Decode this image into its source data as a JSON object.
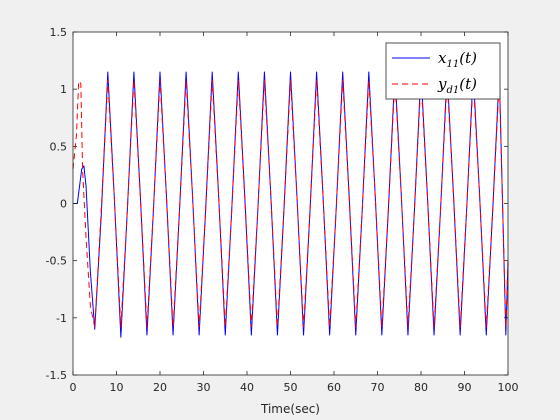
{
  "chart_data": {
    "type": "line",
    "title": "",
    "xlabel": "Time(sec)",
    "ylabel": "",
    "xlim": [
      0,
      100
    ],
    "ylim": [
      -1.5,
      1.5
    ],
    "xticks": [
      0,
      10,
      20,
      30,
      40,
      50,
      60,
      70,
      80,
      90,
      100
    ],
    "yticks": [
      -1.5,
      -1,
      -0.5,
      0,
      0.5,
      1,
      1.5
    ],
    "ytick_labels": [
      "-1.5",
      "-1",
      "-0.5",
      "0",
      "0.5",
      "1",
      "1.5"
    ],
    "grid": false,
    "legend_position": "top-right",
    "series": [
      {
        "name": "x11(t)",
        "name_main": "x",
        "name_sub": "11",
        "name_tail": "(t)",
        "color": "#0000ff",
        "style": "solid",
        "x": [
          0,
          1,
          2,
          2.5,
          3,
          4,
          5,
          6.5,
          8,
          9.5,
          11,
          12.5,
          14,
          15.5,
          17,
          18.5,
          20,
          21.5,
          23,
          24.5,
          26,
          27.5,
          29,
          30.5,
          32,
          33.5,
          35,
          36.5,
          38,
          39.5,
          41,
          42.5,
          44,
          45.5,
          47,
          48.5,
          50,
          51.5,
          53,
          54.5,
          56,
          57.5,
          59,
          60.5,
          62,
          63.5,
          65,
          66.5,
          68,
          69.5,
          71,
          72.5,
          74,
          75.5,
          77,
          78.5,
          80,
          81.5,
          83,
          84.5,
          86,
          87.5,
          89,
          90.5,
          92,
          93.5,
          95,
          96.5,
          98,
          99.5,
          100
        ],
        "y": [
          0,
          0,
          0.3,
          0.33,
          0.15,
          -0.6,
          -1.1,
          -0.1,
          1.15,
          0.05,
          -1.17,
          -0.05,
          1.15,
          0.05,
          -1.15,
          -0.05,
          1.15,
          0.05,
          -1.15,
          -0.05,
          1.15,
          0.05,
          -1.15,
          -0.05,
          1.15,
          0.05,
          -1.15,
          -0.05,
          1.15,
          0.05,
          -1.15,
          -0.05,
          1.15,
          0.05,
          -1.15,
          -0.05,
          1.15,
          0.05,
          -1.15,
          -0.05,
          1.15,
          0.05,
          -1.15,
          -0.05,
          1.15,
          0.05,
          -1.15,
          -0.05,
          1.15,
          0.05,
          -1.15,
          -0.05,
          1.15,
          0.05,
          -1.15,
          -0.05,
          1.15,
          0.05,
          -1.15,
          -0.05,
          1.15,
          0.05,
          -1.15,
          -0.05,
          1.15,
          0.05,
          -1.15,
          -0.05,
          1.15,
          -1.15,
          -0.5
        ]
      },
      {
        "name": "yd1(t)",
        "name_main": "y",
        "name_sub": "d1",
        "name_tail": "(t)",
        "color": "#ff0000",
        "style": "dashed",
        "x": [
          0,
          0.8,
          1.3,
          1.8,
          2.2,
          3,
          4,
          5,
          6.5,
          8,
          9.5,
          11,
          12.5,
          14,
          15.5,
          17,
          18.5,
          20,
          21.5,
          23,
          24.5,
          26,
          27.5,
          29,
          30.5,
          32,
          33.5,
          35,
          36.5,
          38,
          39.5,
          41,
          42.5,
          44,
          45.5,
          47,
          48.5,
          50,
          51.5,
          53,
          54.5,
          56,
          57.5,
          59,
          60.5,
          62,
          63.5,
          65,
          66.5,
          68,
          69.5,
          71,
          72.5,
          74,
          75.5,
          77,
          78.5,
          80,
          81.5,
          83,
          84.5,
          86,
          87.5,
          89,
          90.5,
          92,
          93.5,
          95,
          96.5,
          98,
          99.5,
          100
        ],
        "y": [
          0.3,
          0.6,
          1.07,
          1.05,
          0.3,
          -0.3,
          -0.9,
          -1.08,
          -0.05,
          1.08,
          0.05,
          -1.08,
          -0.05,
          1.08,
          0.05,
          -1.08,
          -0.05,
          1.08,
          0.05,
          -1.08,
          -0.05,
          1.08,
          0.05,
          -1.08,
          -0.05,
          1.08,
          0.05,
          -1.08,
          -0.05,
          1.08,
          0.05,
          -1.08,
          -0.05,
          1.08,
          0.05,
          -1.08,
          -0.05,
          1.08,
          0.05,
          -1.08,
          -0.05,
          1.08,
          0.05,
          -1.08,
          -0.05,
          1.08,
          0.05,
          -1.08,
          -0.05,
          1.08,
          0.05,
          -1.08,
          -0.05,
          1.08,
          0.05,
          -1.08,
          -0.05,
          1.08,
          0.05,
          -1.08,
          -0.05,
          1.08,
          0.05,
          -1.08,
          -0.05,
          1.08,
          0.05,
          -1.08,
          -0.05,
          1.08,
          -1.08,
          -0.5
        ]
      }
    ]
  }
}
